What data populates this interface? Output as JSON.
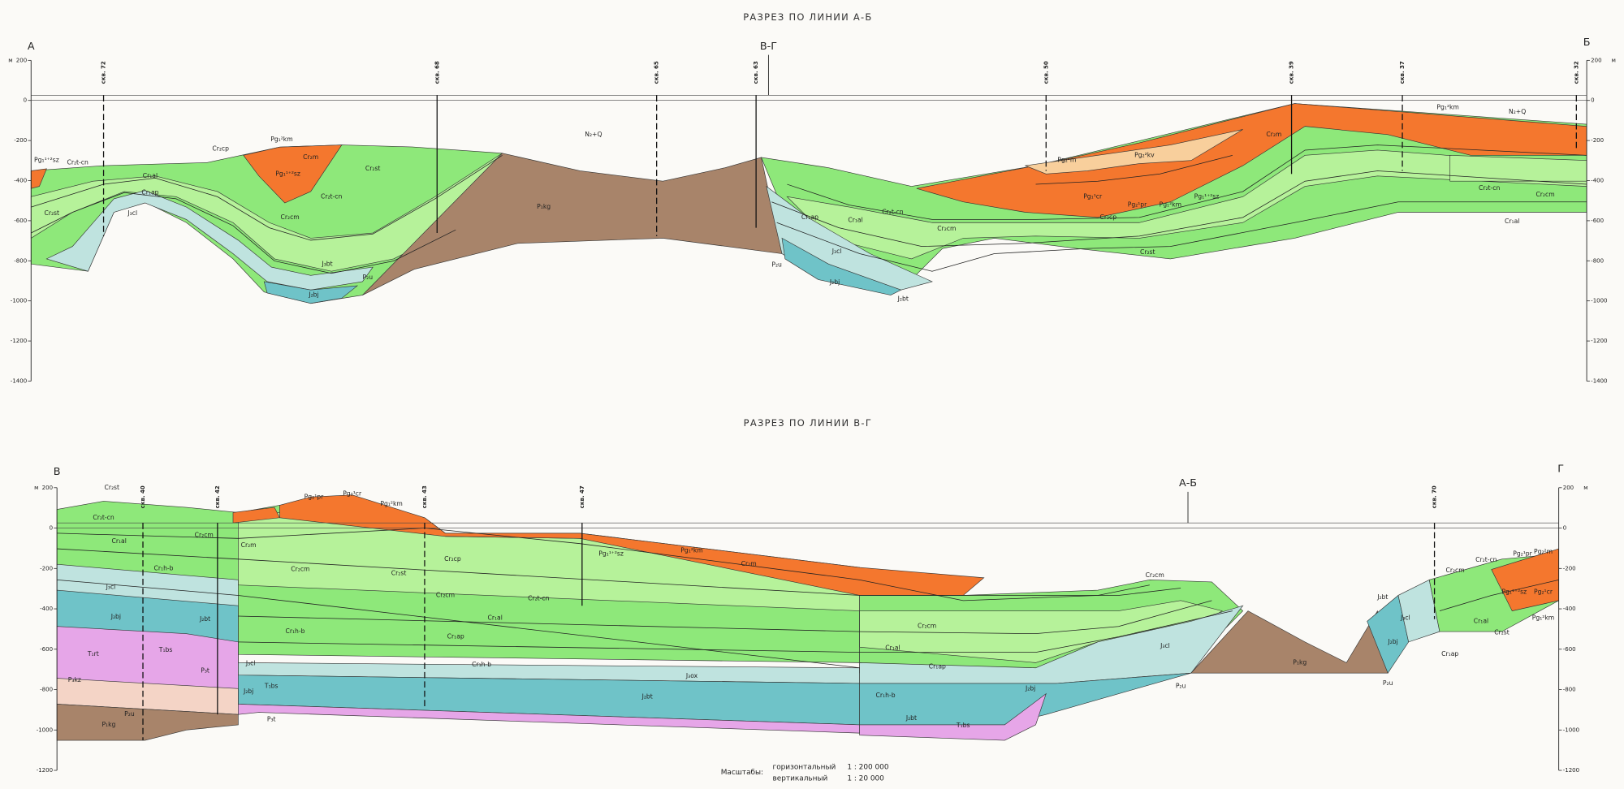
{
  "sections": [
    {
      "title": "РАЗРЕЗ ПО ЛИНИИ А-Б",
      "start": "А",
      "end": "Б",
      "intersection": "В-Г",
      "unit": "м",
      "ticks": [
        200,
        0,
        -200,
        -400,
        -600,
        -800,
        -1000,
        -1200,
        -1400
      ],
      "wells": [
        "скв. 72",
        "скв. 68",
        "скв. 65",
        "скв. 63",
        "скв. 50",
        "скв. 39",
        "скв. 37",
        "скв. 32"
      ],
      "layer_labels": [
        "Pg₁¹⁺²sz",
        "Cr₂t-cn",
        "Cr₁al",
        "Cr₁ap",
        "Cr₂st",
        "J₃cl",
        "Cr₂cp",
        "Pg₁²km",
        "Cr₂m",
        "Pg₁¹⁺²sz",
        "Cr₂st",
        "Cr₂t-cn",
        "Cr₂cm",
        "J₃bt",
        "J₂bj",
        "P₂u",
        "N₂+Q",
        "P₁kg",
        "Cr₁ap",
        "Cr₁al",
        "Cr₂t-cn",
        "Cr₂cm",
        "J₃cl",
        "J₂bj",
        "P₂u",
        "J₂bt",
        "Pg₂²m",
        "Pg₂²kv",
        "Cr₂m",
        "Pg₁¹cr",
        "Pg₂¹pr",
        "Pg₁²km",
        "Pg₁¹⁺²sz",
        "Cr₂cp",
        "Cr₂st",
        "Pg₁²km",
        "N₂+Q",
        "Cr₂t-cn",
        "Cr₂cm",
        "Cr₁al"
      ]
    },
    {
      "title": "РАЗРЕЗ ПО ЛИНИИ В-Г",
      "start": "В",
      "end": "Г",
      "intersection": "А-Б",
      "unit": "м",
      "ticks": [
        200,
        0,
        -200,
        -400,
        -600,
        -800,
        -1000,
        -1200
      ],
      "wells": [
        "скв. 40",
        "скв. 42",
        "скв. 43",
        "скв. 47",
        "скв. 70"
      ],
      "layer_labels": [
        "Cr₂st",
        "Cr₂t-cn",
        "Cr₁al",
        "Cr₁h-b",
        "J₃cl",
        "J₂bj",
        "T₁rt",
        "T₁bs",
        "P₃kz",
        "P₃t",
        "P₂u",
        "P₁kg",
        "Cr₂cm",
        "J₂bt",
        "Cr₂m",
        "J₃cl",
        "J₂bj",
        "T₁bs",
        "P₃t",
        "Pg₂¹pr",
        "Pg₂¹cr",
        "Pg₁²km",
        "Cr₂cm",
        "Cr₂st",
        "Cr₂cp",
        "Cr₂cm",
        "Cr₂t-cn",
        "Cr₁h-b",
        "Cr₁al",
        "Cr₁ap",
        "Cr₁h-b",
        "J₃ox",
        "J₂bt",
        "Pg₁¹⁺²sz",
        "Pg₁²km",
        "Cr₂m",
        "Cr₂cm",
        "Cr₂cm",
        "Cr₁al",
        "Cr₁ap",
        "J₃cl",
        "Cr₁h-b",
        "J₂bt",
        "T₁bs",
        "J₂bj",
        "P₂u",
        "P₁kg",
        "J₂bt",
        "J₃cl",
        "J₂bj",
        "P₂u",
        "Cr₂cm",
        "Cr₂t-cn",
        "Cr₁al",
        "Cr₁ap",
        "Cr₂st",
        "Pg₂¹pr",
        "Pg₂²m",
        "Pg₁¹⁺²sz",
        "Pg₂¹cr",
        "Pg₁²km"
      ]
    }
  ],
  "scale": {
    "label": "Масштабы:",
    "rows": [
      [
        "горизонтальный",
        "1 : 200 000"
      ],
      [
        "вертикальный",
        "1 : 20 000"
      ]
    ]
  }
}
